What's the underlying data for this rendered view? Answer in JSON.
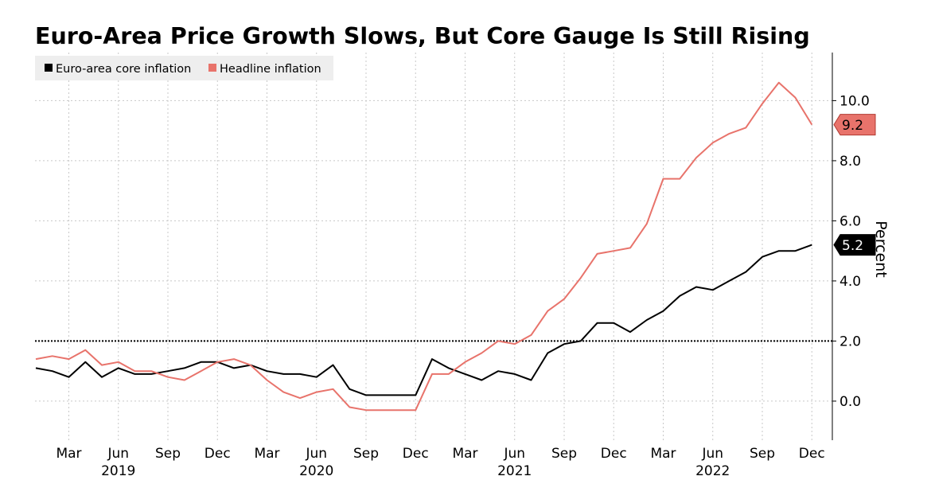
{
  "chart_data": {
    "type": "line",
    "title": "Euro-Area Price Growth Slows, But Core Gauge Is Still Rising",
    "xlabel": "",
    "ylabel": "Percent",
    "ylim": [
      -1.3,
      11.6
    ],
    "y_ticks": [
      {
        "value": 0,
        "label": "0.0"
      },
      {
        "value": 2,
        "label": "2.0"
      },
      {
        "value": 4,
        "label": "4.0"
      },
      {
        "value": 6,
        "label": "6.0"
      },
      {
        "value": 8,
        "label": "8.0"
      },
      {
        "value": 10,
        "label": "10.0"
      }
    ],
    "x_month_ticks": [
      {
        "index": 2,
        "label": "Mar"
      },
      {
        "index": 5,
        "label": "Jun"
      },
      {
        "index": 8,
        "label": "Sep"
      },
      {
        "index": 11,
        "label": "Dec"
      },
      {
        "index": 14,
        "label": "Mar"
      },
      {
        "index": 17,
        "label": "Jun"
      },
      {
        "index": 20,
        "label": "Sep"
      },
      {
        "index": 23,
        "label": "Dec"
      },
      {
        "index": 26,
        "label": "Mar"
      },
      {
        "index": 29,
        "label": "Jun"
      },
      {
        "index": 32,
        "label": "Sep"
      },
      {
        "index": 35,
        "label": "Dec"
      },
      {
        "index": 38,
        "label": "Mar"
      },
      {
        "index": 41,
        "label": "Jun"
      },
      {
        "index": 44,
        "label": "Sep"
      },
      {
        "index": 47,
        "label": "Dec"
      }
    ],
    "x_year_ticks": [
      {
        "index": 5,
        "label": "2019"
      },
      {
        "index": 17,
        "label": "2020"
      },
      {
        "index": 29,
        "label": "2021"
      },
      {
        "index": 41,
        "label": "2022"
      }
    ],
    "reference_line": {
      "value": 2.0
    },
    "legend": {
      "placement": "top-left"
    },
    "series": [
      {
        "name": "Euro-area core inflation",
        "color": "#000000",
        "last_value_label": "5.2",
        "values": [
          1.1,
          1.0,
          0.8,
          1.3,
          0.8,
          1.1,
          0.9,
          0.9,
          1.0,
          1.1,
          1.3,
          1.3,
          1.1,
          1.2,
          1.0,
          0.9,
          0.9,
          0.8,
          1.2,
          0.4,
          0.2,
          0.2,
          0.2,
          0.2,
          1.4,
          1.1,
          0.9,
          0.7,
          1.0,
          0.9,
          0.7,
          1.6,
          1.9,
          2.0,
          2.6,
          2.6,
          2.3,
          2.7,
          3.0,
          3.5,
          3.8,
          3.7,
          4.0,
          4.3,
          4.8,
          5.0,
          5.0,
          5.2
        ]
      },
      {
        "name": "Headline inflation",
        "color": "#e8736b",
        "last_value_label": "9.2",
        "values": [
          1.4,
          1.5,
          1.4,
          1.7,
          1.2,
          1.3,
          1.0,
          1.0,
          0.8,
          0.7,
          1.0,
          1.3,
          1.4,
          1.2,
          0.7,
          0.3,
          0.1,
          0.3,
          0.4,
          -0.2,
          -0.3,
          -0.3,
          -0.3,
          -0.3,
          0.9,
          0.9,
          1.3,
          1.6,
          2.0,
          1.9,
          2.2,
          3.0,
          3.4,
          4.1,
          4.9,
          5.0,
          5.1,
          5.9,
          7.4,
          7.4,
          8.1,
          8.6,
          8.9,
          9.1,
          9.9,
          10.6,
          10.1,
          9.2
        ]
      }
    ]
  }
}
